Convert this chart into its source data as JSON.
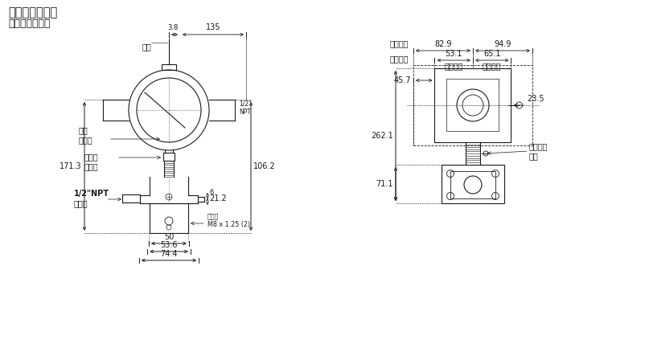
{
  "title1": "典型安装尺寸图",
  "title2": "参考尺寸：毫米",
  "bg_color": "#ffffff",
  "line_color": "#1a1a1a",
  "fig_width": 8.03,
  "fig_height": 4.53,
  "left": {
    "plug_label": "堵头",
    "indicator_label": "可选\n指示表",
    "setscrew_label": "旋转固\n定螺栓",
    "npt_label": "1/2\"NPT\n内螺纹",
    "mounthole_label": "安装孔\nM8 x 1.25 (2)",
    "npt_side": "1/2\"\nNPT",
    "d_38": "3.8",
    "d_135": "135",
    "d_1713": "171.3",
    "d_1062": "106.2",
    "d_6": "6",
    "d_212": "21.2",
    "d_50": "50",
    "d_536": "53.6",
    "d_744": "74.4"
  },
  "right": {
    "with_ind": "带指示表",
    "cap_rot": "盖帽可旋",
    "no_ind1": "无指示表",
    "no_ind2": "无指示表",
    "gnd_label": "可选外接\n地端",
    "d_829": "82.9",
    "d_949": "94.9",
    "d_531": "53.1",
    "d_651": "65.1",
    "d_457": "45.7",
    "d_235": "23.5",
    "d_2621": "262.1",
    "d_711": "71.1"
  }
}
